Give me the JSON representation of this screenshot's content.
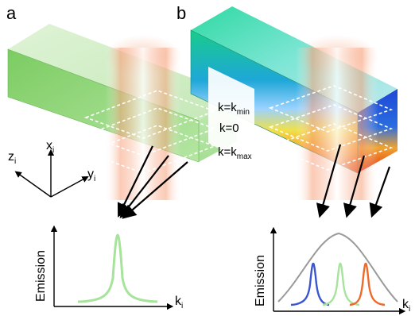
{
  "panels": {
    "a": {
      "label": "a"
    },
    "b": {
      "label": "b"
    }
  },
  "axes": {
    "x": {
      "base": "x",
      "sub": "i"
    },
    "y": {
      "base": "y",
      "sub": "i"
    },
    "z": {
      "base": "z",
      "sub": "i"
    }
  },
  "k_levels": [
    {
      "prefix": "k=",
      "base": "k",
      "sub": "min"
    },
    {
      "prefix": "k=0",
      "base": "",
      "sub": ""
    },
    {
      "prefix": "k=",
      "base": "k",
      "sub": "max"
    }
  ],
  "plot_a": {
    "ylabel": "Emission",
    "xlabel_base": "k",
    "xlabel_sub": "i"
  },
  "plot_b": {
    "ylabel": "Emission",
    "xlabel_base": "k",
    "xlabel_sub": "i"
  },
  "colors": {
    "green_peak": "#a6e39b",
    "blue_peak": "#3a55d0",
    "orange_peak": "#ee6a2a",
    "envelope": "#9a9a9a",
    "beam": "#f58a5a"
  }
}
